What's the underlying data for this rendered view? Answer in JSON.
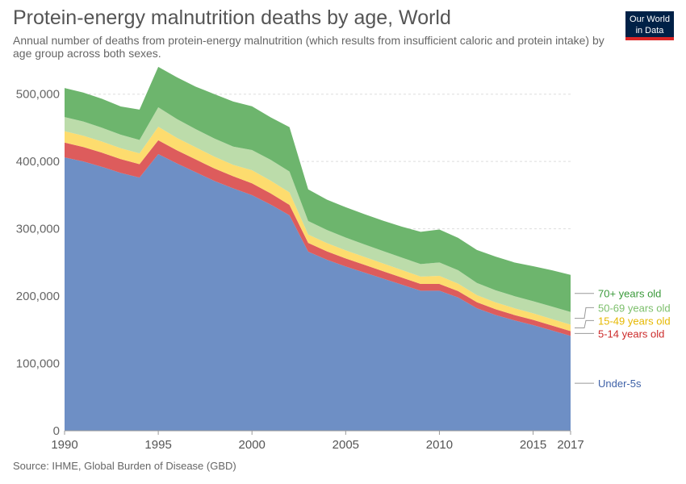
{
  "header": {
    "title": "Protein-energy malnutrition deaths by age, World",
    "subtitle": "Annual number of deaths from protein-energy malnutrition (which results from insufficient caloric and protein intake) by age group across both sexes."
  },
  "logo": {
    "line1": "Our World",
    "line2": "in Data",
    "bg": "#002147",
    "accent": "#dc2626"
  },
  "footer": {
    "source": "Source: IHME, Global Burden of Disease (GBD)"
  },
  "chart_data": {
    "type": "area",
    "stacked": true,
    "x": [
      1990,
      1991,
      1992,
      1993,
      1994,
      1995,
      1996,
      1997,
      1998,
      1999,
      2000,
      2001,
      2002,
      2003,
      2004,
      2005,
      2006,
      2007,
      2008,
      2009,
      2010,
      2011,
      2012,
      2013,
      2014,
      2015,
      2016,
      2017
    ],
    "xticks": [
      1990,
      1995,
      2000,
      2005,
      2010,
      2015,
      2017
    ],
    "ylim": [
      0,
      520000
    ],
    "yticks": [
      {
        "value": 0,
        "label": "0"
      },
      {
        "value": 100000,
        "label": "100,000"
      },
      {
        "value": 200000,
        "label": "200,000"
      },
      {
        "value": 300000,
        "label": "300,000"
      },
      {
        "value": 400000,
        "label": "400,000"
      },
      {
        "value": 500000,
        "label": "500,000"
      }
    ],
    "grid": true,
    "legend": "right",
    "series": [
      {
        "name": "Under-5s",
        "color": "#6e8fc5",
        "label_color": "#3f62a8",
        "values": [
          406000,
          400000,
          392000,
          383000,
          376000,
          411000,
          397000,
          384000,
          371000,
          360000,
          350000,
          336000,
          320000,
          266000,
          254000,
          244000,
          235000,
          226000,
          217000,
          208000,
          208000,
          198000,
          182000,
          172000,
          164000,
          157000,
          149000,
          141000
        ]
      },
      {
        "name": "5-14 years old",
        "color": "#dd5c5c",
        "label_color": "#cc2a2a",
        "values": [
          22000,
          21500,
          21000,
          20500,
          20000,
          20500,
          19500,
          19000,
          18500,
          18000,
          17500,
          16500,
          15500,
          13000,
          12500,
          12000,
          11500,
          11000,
          10500,
          10000,
          10000,
          9500,
          9000,
          8500,
          8000,
          7700,
          7400,
          7000
        ]
      },
      {
        "name": "15-49 years old",
        "color": "#fddc6e",
        "label_color": "#e6b800",
        "values": [
          17000,
          16800,
          16500,
          16200,
          16000,
          20000,
          18500,
          18000,
          17500,
          17000,
          19500,
          19000,
          18500,
          12500,
          12200,
          12000,
          11700,
          11400,
          11200,
          11000,
          12000,
          11000,
          10500,
          10200,
          10000,
          9800,
          9600,
          9500
        ]
      },
      {
        "name": "50-69 years old",
        "color": "#bcdcaa",
        "label_color": "#7cbf6b",
        "values": [
          21000,
          21000,
          20500,
          20000,
          20000,
          29000,
          28000,
          27000,
          27000,
          27000,
          30000,
          31000,
          31000,
          20000,
          19500,
          19000,
          18500,
          18500,
          18500,
          18500,
          20000,
          20000,
          18000,
          18000,
          18000,
          18000,
          18500,
          19000
        ]
      },
      {
        "name": "70+ years old",
        "color": "#6db56d",
        "label_color": "#3b9a3b",
        "values": [
          43000,
          43000,
          43000,
          42000,
          45000,
          60000,
          62000,
          63000,
          66000,
          67000,
          65000,
          63000,
          66000,
          47000,
          45000,
          45000,
          45000,
          45000,
          46000,
          48000,
          49000,
          48000,
          49000,
          50000,
          50000,
          52000,
          54000,
          55000
        ]
      }
    ]
  }
}
